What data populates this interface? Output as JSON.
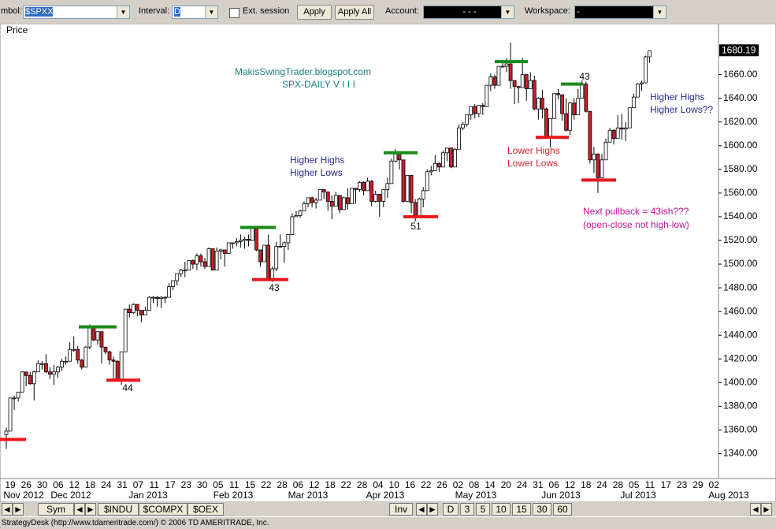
{
  "ui": {
    "symbol_label": "mbol:",
    "symbol_value": "$SPXX",
    "interval_label": "Interval:",
    "interval_value": "D",
    "ext_session": "Ext. session",
    "apply": "Apply",
    "apply_all": "Apply All",
    "account_label": "Account:",
    "account_value": "-   -   -",
    "workspace_label": "Workspace:",
    "workspace_value": "-",
    "tabs_left": [
      "Sym",
      "$INDU",
      "$COMPX",
      "$OEX"
    ],
    "inv": "Inv",
    "intervals": [
      "D",
      "3",
      "5",
      "10",
      "15",
      "30",
      "60"
    ],
    "status": "StrategyDesk (http://www.tdameritrade.com/) © 2006 TD AMERITRADE, Inc."
  },
  "chart_data": {
    "type": "candlestick",
    "panel_label": "Price",
    "last_price": 1680.19,
    "last_price_label": "1680.19",
    "up_color": "#ffffff",
    "down_color": "#cc1f2a",
    "ylim": [
      1319,
      1703
    ],
    "yticks": [
      {
        "value": 1340,
        "label": "1340.00"
      },
      {
        "value": 1360,
        "label": "1360.00"
      },
      {
        "value": 1380,
        "label": "1380.00"
      },
      {
        "value": 1400,
        "label": "1400.00"
      },
      {
        "value": 1420,
        "label": "1420.00"
      },
      {
        "value": 1440,
        "label": "1440.00"
      },
      {
        "value": 1460,
        "label": "1460.00"
      },
      {
        "value": 1480,
        "label": "1480.00"
      },
      {
        "value": 1500,
        "label": "1500.00"
      },
      {
        "value": 1520,
        "label": "1520.00"
      },
      {
        "value": 1540,
        "label": "1540.00"
      },
      {
        "value": 1560,
        "label": "1560.00"
      },
      {
        "value": 1580,
        "label": "1580.00"
      },
      {
        "value": 1600,
        "label": "1600.00"
      },
      {
        "value": 1620,
        "label": "1620.00"
      },
      {
        "value": 1640,
        "label": "1640.00"
      },
      {
        "value": 1660,
        "label": "1660.00"
      }
    ],
    "day_labels": [
      "19",
      "26",
      "30",
      "06",
      "12",
      "18",
      "24",
      "31",
      "07",
      "11",
      "17",
      "23",
      "30",
      "05",
      "11",
      "15",
      "22",
      "28",
      "06",
      "12",
      "18",
      "22",
      "28",
      "04",
      "10",
      "16",
      "22",
      "26",
      "02",
      "08",
      "14",
      "20",
      "24",
      "31",
      "06",
      "12",
      "18",
      "24",
      "28",
      "05",
      "11",
      "17",
      "23",
      "29",
      "02"
    ],
    "month_labels": [
      "Nov 2012",
      "Dec 2012",
      "Jan 2013",
      "Feb 2013",
      "Mar 2013",
      "Apr 2013",
      "May 2013",
      "Jun 2013",
      "Jul 2013",
      "Aug 2013"
    ],
    "candles": [
      [
        1356,
        1362,
        1344,
        1359
      ],
      [
        1359,
        1387,
        1359,
        1387
      ],
      [
        1387,
        1389,
        1377,
        1387
      ],
      [
        1387,
        1392,
        1384,
        1392
      ],
      [
        1392,
        1409,
        1392,
        1409
      ],
      [
        1409,
        1409,
        1397,
        1406
      ],
      [
        1406,
        1409,
        1398,
        1399
      ],
      [
        1399,
        1410,
        1385,
        1409
      ],
      [
        1409,
        1419,
        1409,
        1416
      ],
      [
        1416,
        1418,
        1411,
        1416
      ],
      [
        1416,
        1424,
        1408,
        1409
      ],
      [
        1409,
        1413,
        1403,
        1407
      ],
      [
        1407,
        1415,
        1398,
        1409
      ],
      [
        1409,
        1414,
        1404,
        1413
      ],
      [
        1413,
        1420,
        1410,
        1418
      ],
      [
        1418,
        1422,
        1415,
        1418
      ],
      [
        1418,
        1434,
        1418,
        1428
      ],
      [
        1428,
        1439,
        1426,
        1428
      ],
      [
        1428,
        1431,
        1416,
        1419
      ],
      [
        1419,
        1420,
        1411,
        1413
      ],
      [
        1413,
        1431,
        1413,
        1430
      ],
      [
        1430,
        1449,
        1428,
        1446
      ],
      [
        1446,
        1447,
        1435,
        1436
      ],
      [
        1436,
        1443,
        1432,
        1443
      ],
      [
        1443,
        1443,
        1416,
        1430
      ],
      [
        1430,
        1430,
        1424,
        1426
      ],
      [
        1426,
        1427,
        1415,
        1419
      ],
      [
        1419,
        1422,
        1401,
        1418
      ],
      [
        1418,
        1419,
        1401,
        1402
      ],
      [
        1402,
        1426,
        1398,
        1426
      ],
      [
        1426,
        1462,
        1426,
        1462
      ],
      [
        1462,
        1466,
        1455,
        1459
      ],
      [
        1459,
        1467,
        1458,
        1466
      ],
      [
        1466,
        1466,
        1456,
        1461
      ],
      [
        1461,
        1461,
        1451,
        1457
      ],
      [
        1457,
        1464,
        1457,
        1461
      ],
      [
        1461,
        1473,
        1461,
        1472
      ],
      [
        1472,
        1473,
        1467,
        1472
      ],
      [
        1472,
        1473,
        1464,
        1471
      ],
      [
        1471,
        1473,
        1463,
        1472
      ],
      [
        1472,
        1473,
        1467,
        1472
      ],
      [
        1472,
        1484,
        1472,
        1481
      ],
      [
        1481,
        1486,
        1478,
        1486
      ],
      [
        1486,
        1492,
        1482,
        1492
      ],
      [
        1492,
        1496,
        1489,
        1495
      ],
      [
        1495,
        1502,
        1489,
        1495
      ],
      [
        1495,
        1503,
        1495,
        1503
      ],
      [
        1503,
        1504,
        1496,
        1500
      ],
      [
        1500,
        1509,
        1495,
        1507
      ],
      [
        1507,
        1509,
        1498,
        1502
      ],
      [
        1502,
        1505,
        1496,
        1498
      ],
      [
        1498,
        1514,
        1498,
        1513
      ],
      [
        1513,
        1513,
        1495,
        1495
      ],
      [
        1495,
        1514,
        1495,
        1511
      ],
      [
        1511,
        1513,
        1504,
        1512
      ],
      [
        1512,
        1512,
        1498,
        1509
      ],
      [
        1509,
        1518,
        1509,
        1518
      ],
      [
        1518,
        1518,
        1513,
        1518
      ],
      [
        1518,
        1522,
        1515,
        1519
      ],
      [
        1519,
        1525,
        1514,
        1520
      ],
      [
        1520,
        1523,
        1513,
        1521
      ],
      [
        1521,
        1525,
        1515,
        1520
      ],
      [
        1520,
        1531,
        1520,
        1531
      ],
      [
        1531,
        1531,
        1511,
        1512
      ],
      [
        1512,
        1512,
        1498,
        1502
      ],
      [
        1502,
        1516,
        1502,
        1516
      ],
      [
        1516,
        1525,
        1488,
        1488
      ],
      [
        1488,
        1498,
        1485,
        1496
      ],
      [
        1496,
        1519,
        1494,
        1515
      ],
      [
        1515,
        1525,
        1514,
        1515
      ],
      [
        1515,
        1519,
        1501,
        1518
      ],
      [
        1518,
        1525,
        1512,
        1525
      ],
      [
        1525,
        1543,
        1525,
        1540
      ],
      [
        1540,
        1545,
        1540,
        1541
      ],
      [
        1541,
        1546,
        1539,
        1545
      ],
      [
        1545,
        1553,
        1545,
        1551
      ],
      [
        1551,
        1556,
        1548,
        1556
      ],
      [
        1556,
        1557,
        1548,
        1552
      ],
      [
        1552,
        1556,
        1547,
        1554
      ],
      [
        1554,
        1563,
        1554,
        1563
      ],
      [
        1563,
        1563,
        1555,
        1561
      ],
      [
        1561,
        1561,
        1545,
        1553
      ],
      [
        1553,
        1558,
        1538,
        1549
      ],
      [
        1549,
        1561,
        1549,
        1558
      ],
      [
        1558,
        1558,
        1543,
        1546
      ],
      [
        1546,
        1557,
        1546,
        1556
      ],
      [
        1556,
        1564,
        1546,
        1551
      ],
      [
        1551,
        1564,
        1551,
        1564
      ],
      [
        1564,
        1564,
        1551,
        1563
      ],
      [
        1563,
        1570,
        1561,
        1569
      ],
      [
        1569,
        1570,
        1558,
        1562
      ],
      [
        1562,
        1573,
        1562,
        1570
      ],
      [
        1570,
        1571,
        1549,
        1553
      ],
      [
        1553,
        1562,
        1552,
        1559
      ],
      [
        1559,
        1559,
        1540,
        1553
      ],
      [
        1553,
        1563,
        1548,
        1563
      ],
      [
        1563,
        1573,
        1556,
        1568
      ],
      [
        1568,
        1589,
        1568,
        1587
      ],
      [
        1587,
        1597,
        1586,
        1593
      ],
      [
        1593,
        1593,
        1580,
        1588
      ],
      [
        1588,
        1588,
        1552,
        1553
      ],
      [
        1553,
        1575,
        1553,
        1575
      ],
      [
        1575,
        1575,
        1543,
        1552
      ],
      [
        1552,
        1555,
        1536,
        1541
      ],
      [
        1541,
        1556,
        1539,
        1555
      ],
      [
        1555,
        1565,
        1548,
        1562
      ],
      [
        1562,
        1580,
        1562,
        1578
      ],
      [
        1578,
        1583,
        1575,
        1579
      ],
      [
        1579,
        1592,
        1579,
        1585
      ],
      [
        1585,
        1586,
        1578,
        1582
      ],
      [
        1582,
        1596,
        1582,
        1594
      ],
      [
        1594,
        1598,
        1587,
        1598
      ],
      [
        1598,
        1598,
        1581,
        1582
      ],
      [
        1582,
        1598,
        1582,
        1597
      ],
      [
        1597,
        1618,
        1597,
        1615
      ],
      [
        1615,
        1620,
        1613,
        1618
      ],
      [
        1618,
        1626,
        1616,
        1626
      ],
      [
        1626,
        1633,
        1622,
        1633
      ],
      [
        1633,
        1635,
        1623,
        1627
      ],
      [
        1627,
        1634,
        1624,
        1634
      ],
      [
        1634,
        1636,
        1626,
        1633
      ],
      [
        1633,
        1651,
        1633,
        1651
      ],
      [
        1651,
        1661,
        1646,
        1658
      ],
      [
        1658,
        1660,
        1648,
        1651
      ],
      [
        1651,
        1667,
        1651,
        1667
      ],
      [
        1667,
        1672,
        1666,
        1667
      ],
      [
        1667,
        1674,
        1662,
        1669
      ],
      [
        1669,
        1687,
        1648,
        1655
      ],
      [
        1655,
        1655,
        1635,
        1650
      ],
      [
        1650,
        1650,
        1636,
        1649
      ],
      [
        1649,
        1674,
        1649,
        1660
      ],
      [
        1660,
        1660,
        1638,
        1648
      ],
      [
        1648,
        1662,
        1648,
        1655
      ],
      [
        1655,
        1659,
        1630,
        1631
      ],
      [
        1631,
        1641,
        1622,
        1640
      ],
      [
        1640,
        1647,
        1623,
        1631
      ],
      [
        1631,
        1632,
        1606,
        1608
      ],
      [
        1608,
        1623,
        1599,
        1623
      ],
      [
        1623,
        1644,
        1623,
        1644
      ],
      [
        1644,
        1648,
        1639,
        1643
      ],
      [
        1643,
        1643,
        1621,
        1627
      ],
      [
        1627,
        1640,
        1612,
        1613
      ],
      [
        1613,
        1637,
        1609,
        1636
      ],
      [
        1636,
        1640,
        1622,
        1626
      ],
      [
        1626,
        1648,
        1626,
        1640
      ],
      [
        1640,
        1655,
        1640,
        1652
      ],
      [
        1652,
        1654,
        1628,
        1629
      ],
      [
        1629,
        1629,
        1585,
        1588
      ],
      [
        1588,
        1599,
        1577,
        1593
      ],
      [
        1593,
        1593,
        1560,
        1573
      ],
      [
        1573,
        1593,
        1573,
        1588
      ],
      [
        1588,
        1606,
        1588,
        1603
      ],
      [
        1603,
        1615,
        1603,
        1613
      ],
      [
        1613,
        1614,
        1601,
        1606
      ],
      [
        1606,
        1626,
        1606,
        1615
      ],
      [
        1615,
        1627,
        1605,
        1614
      ],
      [
        1614,
        1620,
        1604,
        1615
      ],
      [
        1615,
        1632,
        1615,
        1632
      ],
      [
        1632,
        1644,
        1632,
        1641
      ],
      [
        1641,
        1653,
        1641,
        1652
      ],
      [
        1652,
        1655,
        1646,
        1653
      ],
      [
        1653,
        1676,
        1653,
        1675
      ],
      [
        1675,
        1680,
        1670,
        1680
      ]
    ],
    "levels": [
      {
        "color": "#e8151d",
        "value": 1352
      },
      {
        "color": "#1a8a1a",
        "value": 1447
      },
      {
        "color": "#e8151d",
        "value": 1402
      },
      {
        "color": "#1a8a1a",
        "value": 1531
      },
      {
        "color": "#e8151d",
        "value": 1487
      },
      {
        "color": "#1a8a1a",
        "value": 1594
      },
      {
        "color": "#e8151d",
        "value": 1540
      },
      {
        "color": "#1a8a1a",
        "value": 1671
      },
      {
        "color": "#e8151d",
        "value": 1607
      },
      {
        "color": "#1a8a1a",
        "value": 1652
      },
      {
        "color": "#e8151d",
        "value": 1571
      }
    ],
    "annotations": [
      {
        "text": "MakisSwingTrader.blogspot.com",
        "color": "#1a7f86"
      },
      {
        "text": "SPX-DAILY  V I I I",
        "color": "#1a7f86"
      },
      {
        "text": "Higher Highs",
        "color": "#2a2a8a"
      },
      {
        "text": "Higher Lows",
        "color": "#2a2a8a"
      },
      {
        "text": "Lower Highs",
        "color": "#d8202a"
      },
      {
        "text": "Lower Lows",
        "color": "#d8202a"
      },
      {
        "text": "Higher Highs",
        "color": "#2a2a8a"
      },
      {
        "text": "Higher Lows??",
        "color": "#2a2a8a"
      },
      {
        "text": "Next pullback = 43ish???",
        "color": "#c0189a"
      },
      {
        "text": "(open-close not high-low)",
        "color": "#c0189a"
      },
      {
        "text": "44",
        "color": "#000000"
      },
      {
        "text": "43",
        "color": "#000000"
      },
      {
        "text": "51",
        "color": "#000000"
      },
      {
        "text": "43",
        "color": "#000000"
      }
    ]
  }
}
